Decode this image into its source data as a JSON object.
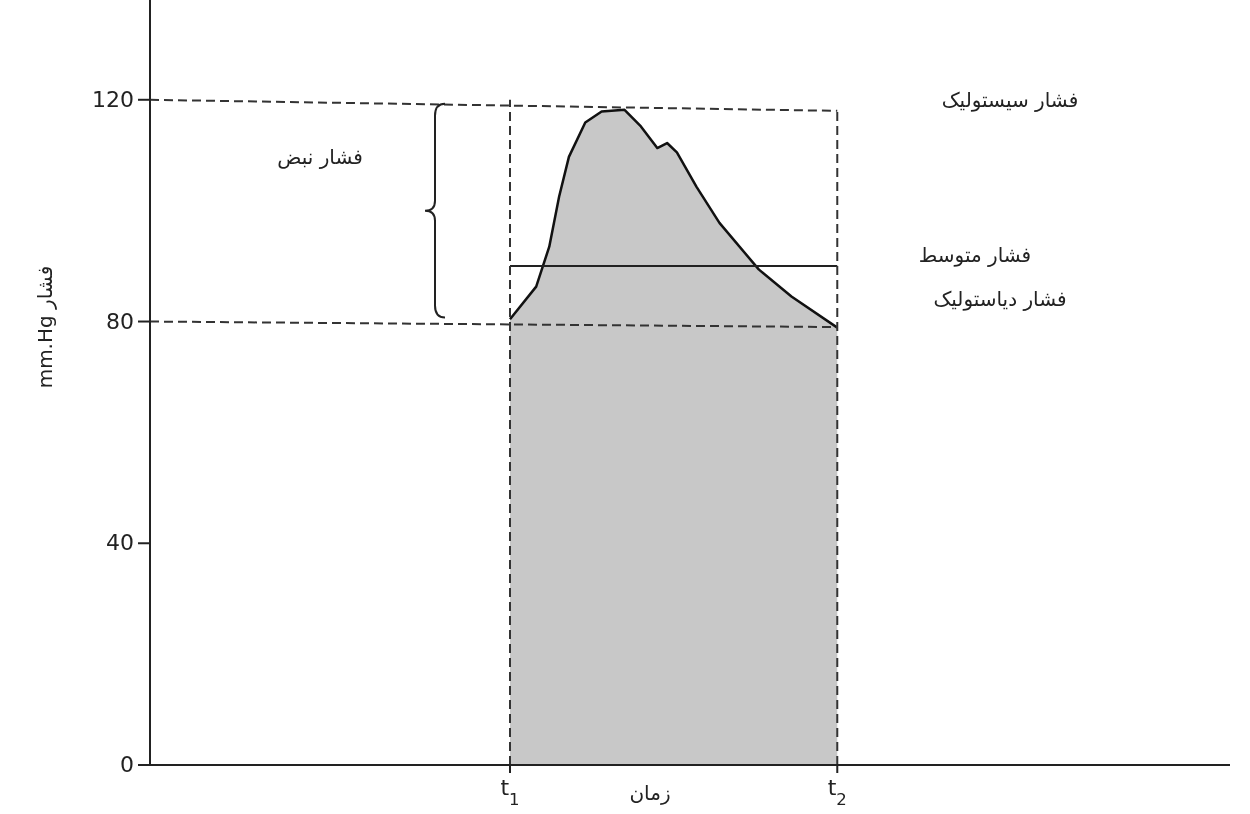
{
  "chart_data": {
    "type": "area",
    "xlabel": "زمان",
    "ylabel": "فشار mm.Hg",
    "xlim": [
      -0.1,
      3.2
    ],
    "ylim": [
      0,
      138
    ],
    "xticks": [
      {
        "value": 1,
        "label": "t$_{1}$"
      },
      {
        "value": 2,
        "label": "t$_{2}$"
      }
    ],
    "yticks": [
      0,
      40,
      80,
      120
    ],
    "series": [
      {
        "color": "#c8c8c8",
        "x": [
          1.0,
          1.08,
          1.12,
          1.15,
          1.18,
          1.23,
          1.28,
          1.35,
          1.4,
          1.45,
          1.48,
          1.51,
          1.57,
          1.64,
          1.76,
          1.86,
          2.0
        ],
        "values": [
          80.4,
          86.3,
          93.5,
          102.5,
          109.7,
          115.9,
          117.9,
          118.2,
          115.2,
          111.3,
          112.2,
          110.5,
          104.3,
          97.8,
          89.4,
          84.5,
          78.9
        ]
      },
      {
        "type": "line",
        "color": "#222222",
        "line_style": "solid",
        "x": [
          1.0,
          2.0
        ],
        "values": [
          90,
          90
        ]
      },
      {
        "type": "line",
        "color": "#333333",
        "line_style": "dashed",
        "x": [
          -0.1,
          2.0
        ],
        "values": [
          120,
          118
        ]
      },
      {
        "type": "line",
        "color": "#333333",
        "line_style": "dashed",
        "x": [
          -0.1,
          2.0
        ],
        "values": [
          80,
          79
        ]
      },
      {
        "type": "line",
        "color": "#333333",
        "line_style": "dashed",
        "x": [
          1.0,
          1.0
        ],
        "values": [
          0,
          120
        ]
      },
      {
        "type": "line",
        "color": "#333333",
        "line_style": "dashed",
        "x": [
          2.0,
          2.0
        ],
        "values": [
          0,
          118
        ]
      }
    ],
    "annotations": [
      "فشار سیستولیک",
      "فشار متوسط",
      "فشار دیاستولیک",
      "فشار نبض"
    ]
  }
}
